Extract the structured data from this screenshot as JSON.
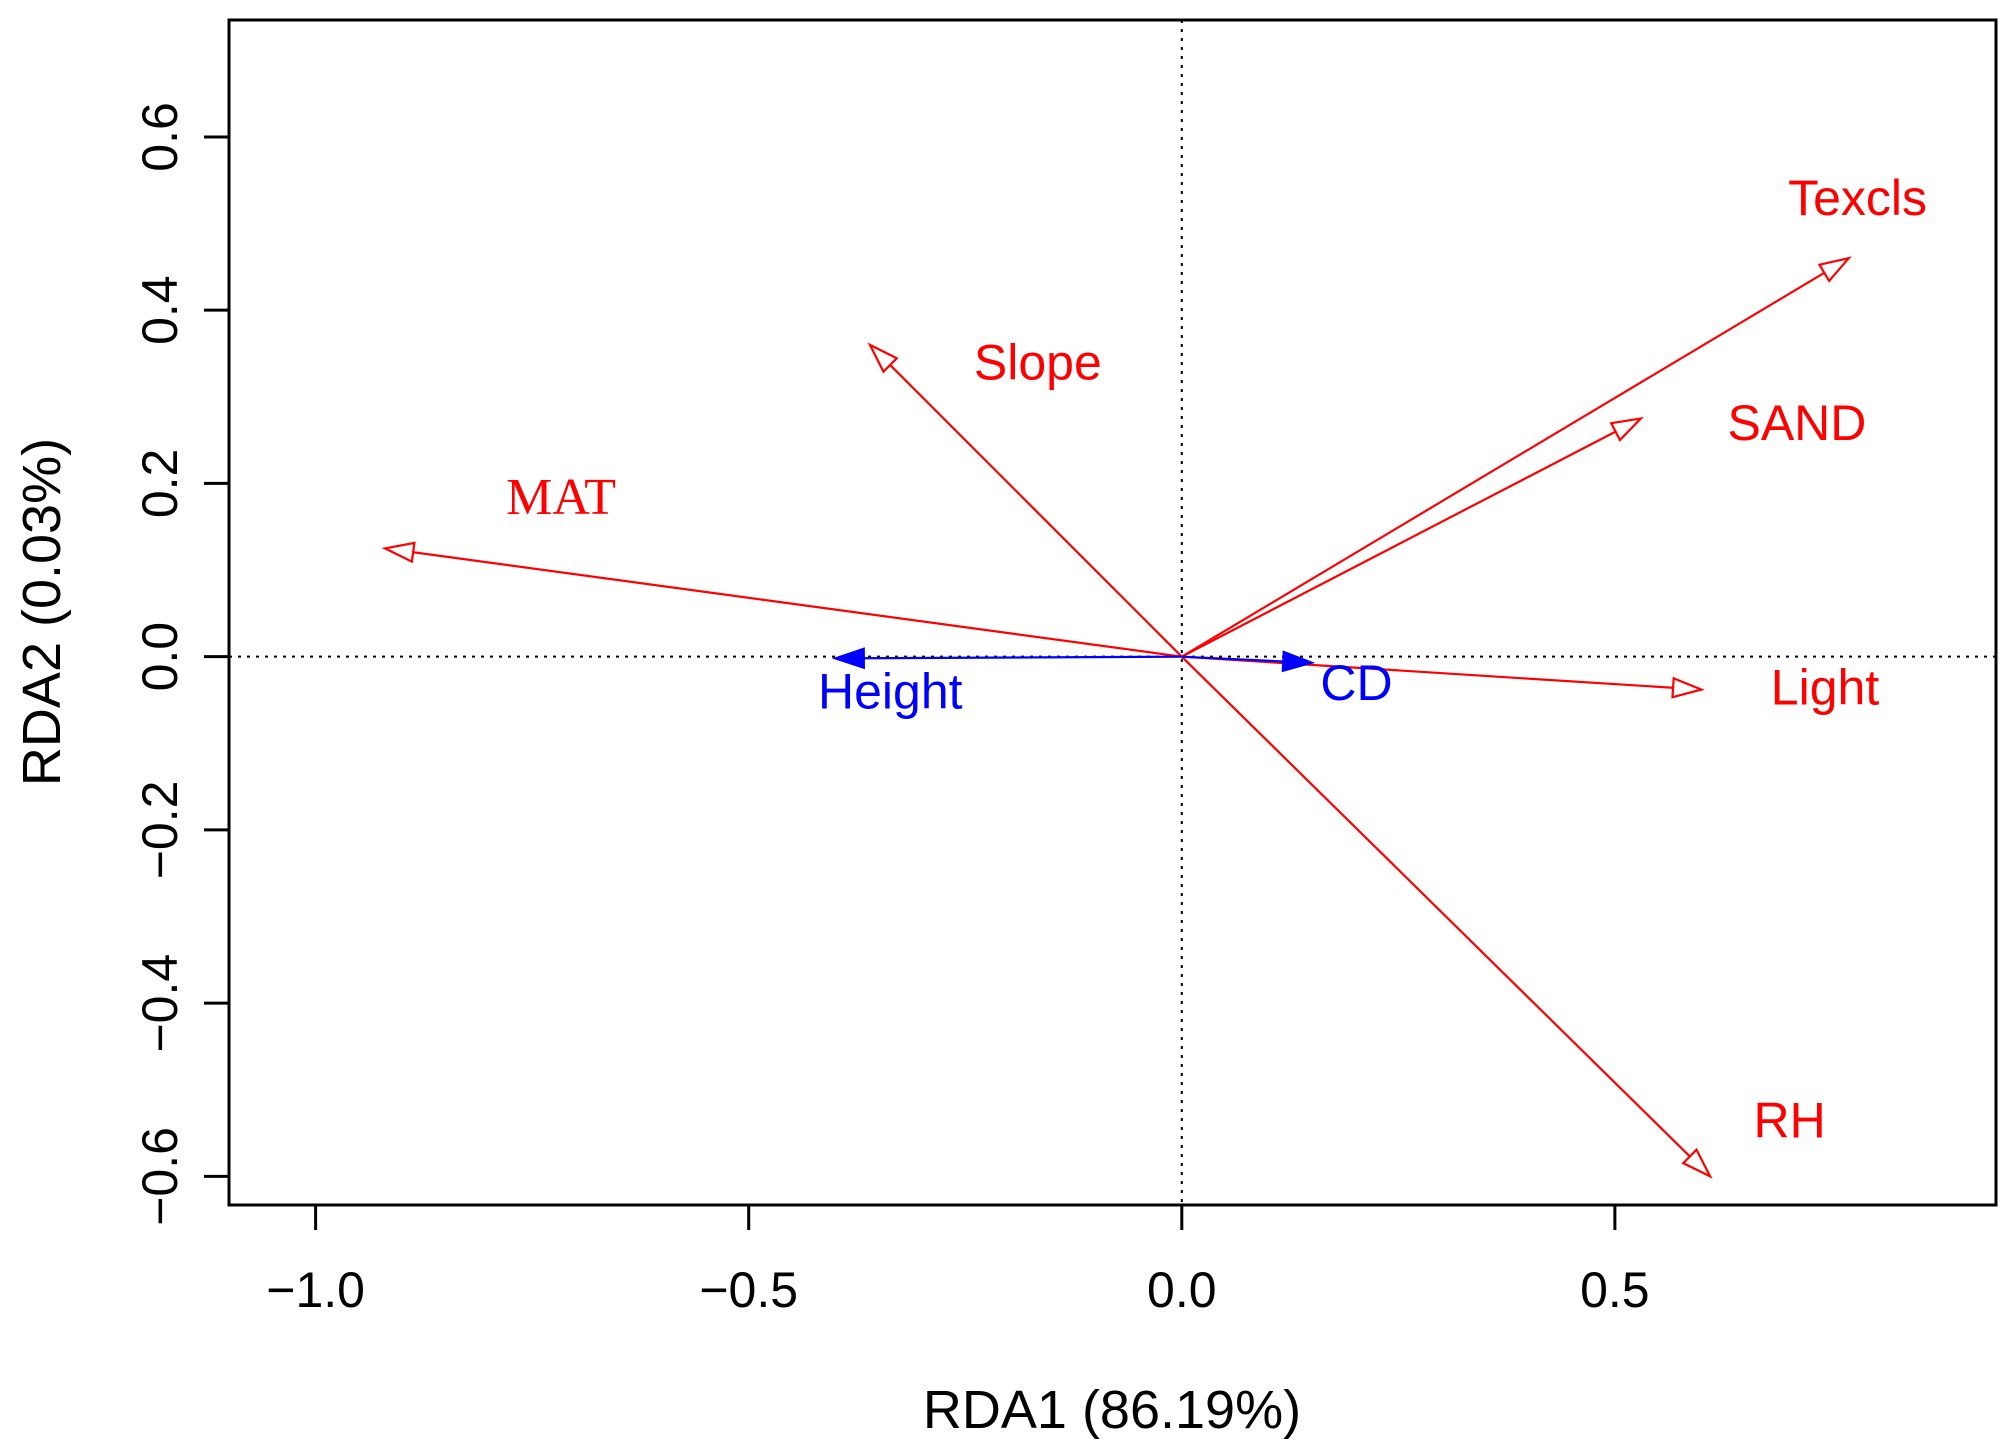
{
  "chart_data": {
    "type": "biplot",
    "title": "",
    "xlabel": "RDA1 (86.19%)",
    "ylabel": "RDA2 (0.03%)",
    "xlim": [
      -1.1,
      0.94
    ],
    "ylim": [
      -0.633,
      0.735
    ],
    "xticks": [
      -1.0,
      -0.5,
      0.0,
      0.5
    ],
    "xtick_labels": [
      "−1.0",
      "−0.5",
      "0.0",
      "0.5"
    ],
    "yticks": [
      -0.6,
      -0.4,
      -0.2,
      0.0,
      0.2,
      0.4,
      0.6
    ],
    "ytick_labels": [
      "−0.6",
      "−0.4",
      "−0.2",
      "0.0",
      "0.2",
      "0.4",
      "0.6"
    ],
    "reference_lines": {
      "x": 0,
      "y": 0,
      "style": "dotted"
    },
    "colors": {
      "explanatory": "#ff0000",
      "response": "#0000ff",
      "axis": "#000000"
    },
    "vectors": [
      {
        "name": "Texcls",
        "x": 0.77,
        "y": 0.46,
        "group": "explanatory",
        "label_x": 0.7,
        "label_y": 0.51,
        "label_font": "sans"
      },
      {
        "name": "SAND",
        "x": 0.53,
        "y": 0.275,
        "group": "explanatory",
        "label_x": 0.63,
        "label_y": 0.25,
        "label_font": "sans"
      },
      {
        "name": "Slope",
        "x": -0.36,
        "y": 0.36,
        "group": "explanatory",
        "label_x": -0.24,
        "label_y": 0.32,
        "label_font": "sans"
      },
      {
        "name": "MAT",
        "x": -0.92,
        "y": 0.125,
        "group": "explanatory",
        "label_x": -0.78,
        "label_y": 0.165,
        "label_font": "serif"
      },
      {
        "name": "Light",
        "x": 0.6,
        "y": -0.038,
        "group": "explanatory",
        "label_x": 0.68,
        "label_y": -0.055,
        "label_font": "sans"
      },
      {
        "name": "RH",
        "x": 0.61,
        "y": -0.6,
        "group": "explanatory",
        "label_x": 0.66,
        "label_y": -0.555,
        "label_font": "sans"
      },
      {
        "name": "Height",
        "x": -0.4,
        "y": -0.002,
        "group": "response",
        "label_x": -0.42,
        "label_y": -0.06,
        "label_font": "sans"
      },
      {
        "name": "CD",
        "x": 0.15,
        "y": -0.007,
        "group": "response",
        "label_x": 0.16,
        "label_y": -0.05,
        "label_font": "sans"
      }
    ]
  }
}
